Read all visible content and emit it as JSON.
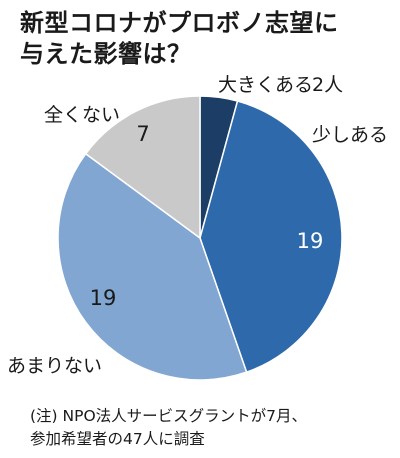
{
  "title": {
    "line1": "新型コロナがプロボノ志望に",
    "line2": "与えた影響は？"
  },
  "chart_data": {
    "type": "pie",
    "start": "top",
    "direction": "clockwise",
    "slices": [
      {
        "label": "大きくある",
        "value": 2,
        "value_text": "2人",
        "color": "#1b3d66",
        "value_color": "#1a1a1a"
      },
      {
        "label": "少しある",
        "value": 19,
        "value_text": "19",
        "color": "#2e6aab",
        "value_color": "#ffffff"
      },
      {
        "label": "あまりない",
        "value": 19,
        "value_text": "19",
        "color": "#80a6d1",
        "value_color": "#1a1a1a"
      },
      {
        "label": "全くない",
        "value": 7,
        "value_text": "7",
        "color": "#c9c9c9",
        "value_color": "#1a1a1a"
      }
    ]
  },
  "note": {
    "line1": "(注) NPO法人サービスグラントが7月、",
    "line2": "参加希望者の47人に調査"
  }
}
